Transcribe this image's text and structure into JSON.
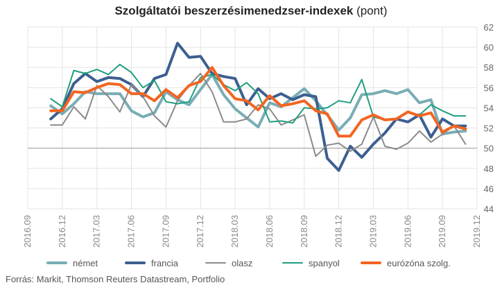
{
  "title": {
    "bold": "Szolgáltatói beszerzésimenedzser-indexek",
    "normal": " (pont)"
  },
  "source": "Forrás: Markit, Thomson Reuters Datastream, Portfolio",
  "chart_data": {
    "type": "line",
    "title": "Szolgáltatói beszerzésimenedzser-indexek (pont)",
    "xlabel": "",
    "ylabel": "",
    "ylim": [
      44,
      62
    ],
    "yticks": [
      44,
      46,
      48,
      50,
      52,
      54,
      56,
      58,
      60,
      62
    ],
    "reference_line": 50,
    "grid": true,
    "legend_position": "bottom",
    "x_tick_labels": [
      "2016.09",
      "2016.12",
      "2017.03",
      "2017.06",
      "2017.09",
      "2017.12",
      "2018.03",
      "2018.06",
      "2018.09",
      "2018.12",
      "2019.03",
      "2019.06",
      "2019.09",
      "2019.12"
    ],
    "x": [
      "2016.11",
      "2016.12",
      "2017.01",
      "2017.02",
      "2017.03",
      "2017.04",
      "2017.05",
      "2017.06",
      "2017.07",
      "2017.08",
      "2017.09",
      "2017.10",
      "2017.11",
      "2017.12",
      "2018.01",
      "2018.02",
      "2018.03",
      "2018.04",
      "2018.05",
      "2018.06",
      "2018.07",
      "2018.08",
      "2018.09",
      "2018.10",
      "2018.11",
      "2018.12",
      "2019.01",
      "2019.02",
      "2019.03",
      "2019.04",
      "2019.05",
      "2019.06",
      "2019.07",
      "2019.08",
      "2019.09",
      "2019.10",
      "2019.11"
    ],
    "series": [
      {
        "name": "német",
        "color": "#79adb5",
        "width": 4,
        "values": [
          54.2,
          53.4,
          54.4,
          55.6,
          55.4,
          55.4,
          55.4,
          53.7,
          53.1,
          53.5,
          55.6,
          54.8,
          54.3,
          55.8,
          57.3,
          55.3,
          53.9,
          53.0,
          52.1,
          54.5,
          54.1,
          55.0,
          55.9,
          54.7,
          53.3,
          51.8,
          53.0,
          55.3,
          55.4,
          55.7,
          55.4,
          55.8,
          54.5,
          54.8,
          51.4,
          51.6,
          51.7
        ]
      },
      {
        "name": "francia",
        "color": "#3c5f8f",
        "width": 4,
        "values": [
          52.9,
          53.9,
          56.4,
          57.4,
          56.6,
          57.0,
          56.9,
          56.3,
          55.1,
          56.9,
          57.3,
          60.4,
          59.0,
          59.1,
          57.4,
          57.1,
          56.9,
          54.3,
          55.9,
          54.9,
          55.4,
          54.8,
          55.3,
          55.1,
          49.0,
          47.8,
          50.2,
          49.1,
          50.4,
          51.5,
          52.9,
          52.6,
          53.3,
          51.1,
          52.9,
          52.2,
          52.2
        ]
      },
      {
        "name": "olasz",
        "color": "#8a8a8a",
        "width": 2,
        "values": [
          52.3,
          52.3,
          54.1,
          52.9,
          56.2,
          55.1,
          53.6,
          56.3,
          55.1,
          53.2,
          52.1,
          54.7,
          56.2,
          57.4,
          55.6,
          52.6,
          52.6,
          52.9,
          54.3,
          53.9,
          52.3,
          52.8,
          53.3,
          49.2,
          50.3,
          50.5,
          49.7,
          50.4,
          53.1,
          50.2,
          49.9,
          50.5,
          51.7,
          50.6,
          51.4,
          52.2,
          50.4
        ]
      },
      {
        "name": "spanyol",
        "color": "#1f9e80",
        "width": 2,
        "values": [
          54.9,
          54.1,
          57.7,
          57.4,
          57.8,
          57.3,
          58.3,
          57.5,
          56.0,
          56.7,
          54.6,
          54.4,
          54.6,
          57.0,
          57.3,
          56.3,
          55.7,
          56.5,
          55.4,
          52.6,
          52.7,
          52.5,
          54.0,
          53.9,
          54.0,
          54.7,
          54.5,
          56.8,
          53.1,
          52.8,
          52.9,
          53.6,
          53.3,
          54.3,
          53.7,
          53.2,
          53.2
        ]
      },
      {
        "name": "eurózóna szolg.",
        "color": "#f26522",
        "width": 4,
        "values": [
          53.7,
          53.7,
          55.6,
          55.5,
          56.0,
          56.4,
          56.3,
          55.4,
          55.4,
          54.7,
          55.8,
          55.0,
          56.2,
          56.6,
          58.0,
          56.2,
          54.9,
          54.7,
          53.8,
          55.2,
          54.2,
          54.4,
          54.7,
          53.7,
          53.4,
          51.2,
          51.2,
          52.8,
          53.3,
          52.8,
          52.9,
          53.6,
          53.2,
          53.5,
          51.6,
          52.2,
          51.9
        ]
      }
    ]
  }
}
